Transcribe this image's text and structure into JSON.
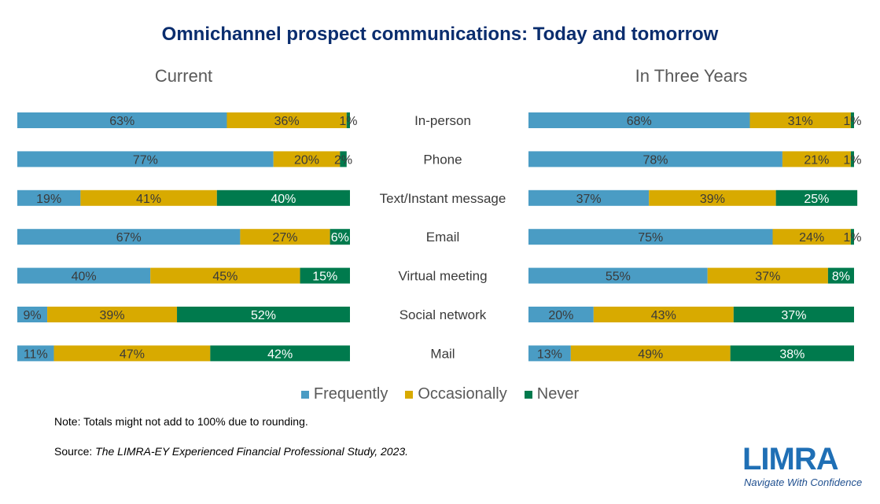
{
  "title": "Omnichannel prospect communications: Today and tomorrow",
  "colors": {
    "frequently": "#4a9cc4",
    "occasionally": "#d8aa00",
    "never": "#007a4d",
    "title": "#0a2d6e",
    "logo": "#1f6fb5"
  },
  "chart_data": [
    {
      "type": "bar",
      "orientation": "horizontal",
      "stacked": true,
      "title": "Current",
      "categories": [
        "In-person",
        "Phone",
        "Text/Instant message",
        "Email",
        "Virtual meeting",
        "Social network",
        "Mail"
      ],
      "series": [
        {
          "name": "Frequently",
          "values": [
            63,
            77,
            19,
            67,
            40,
            9,
            11
          ]
        },
        {
          "name": "Occasionally",
          "values": [
            36,
            20,
            41,
            27,
            45,
            39,
            47
          ]
        },
        {
          "name": "Never",
          "values": [
            1,
            2,
            40,
            6,
            15,
            52,
            42
          ]
        }
      ],
      "data_labels": [
        [
          "63%",
          "36%",
          "1%"
        ],
        [
          "77%",
          "20%",
          "2%"
        ],
        [
          "19%",
          "41%",
          "40%"
        ],
        [
          "67%",
          "27%",
          "6%"
        ],
        [
          "40%",
          "45%",
          "15%"
        ],
        [
          "9%",
          "39%",
          "52%"
        ],
        [
          "11%",
          "47%",
          "42%"
        ]
      ],
      "xlim": [
        0,
        100
      ]
    },
    {
      "type": "bar",
      "orientation": "horizontal",
      "stacked": true,
      "title": "In Three Years",
      "categories": [
        "In-person",
        "Phone",
        "Text/Instant message",
        "Email",
        "Virtual meeting",
        "Social network",
        "Mail"
      ],
      "series": [
        {
          "name": "Frequently",
          "values": [
            68,
            78,
            37,
            75,
            55,
            20,
            13
          ]
        },
        {
          "name": "Occasionally",
          "values": [
            31,
            21,
            39,
            24,
            37,
            43,
            49
          ]
        },
        {
          "name": "Never",
          "values": [
            1,
            1,
            25,
            1,
            8,
            37,
            38
          ]
        }
      ],
      "data_labels": [
        [
          "68%",
          "31%",
          "1%"
        ],
        [
          "78%",
          "21%",
          "1%"
        ],
        [
          "37%",
          "39%",
          "25%"
        ],
        [
          "75%",
          "24%",
          "1%"
        ],
        [
          "55%",
          "37%",
          "8%"
        ],
        [
          "20%",
          "43%",
          "37%"
        ],
        [
          "13%",
          "49%",
          "38%"
        ]
      ],
      "xlim": [
        0,
        100
      ]
    }
  ],
  "legend": {
    "placement": "bottom",
    "items": [
      {
        "label": "Frequently",
        "color": "#4a9cc4"
      },
      {
        "label": "Occasionally",
        "color": "#d8aa00"
      },
      {
        "label": "Never",
        "color": "#007a4d"
      }
    ]
  },
  "note": "Note: Totals might not add to 100% due to rounding.",
  "source": {
    "prefix": "Source: ",
    "citation": "The LIMRA-EY Experienced Financial Professional Study, 2023."
  },
  "logo": {
    "name": "LIMRA",
    "tagline": "Navigate With Confidence"
  }
}
